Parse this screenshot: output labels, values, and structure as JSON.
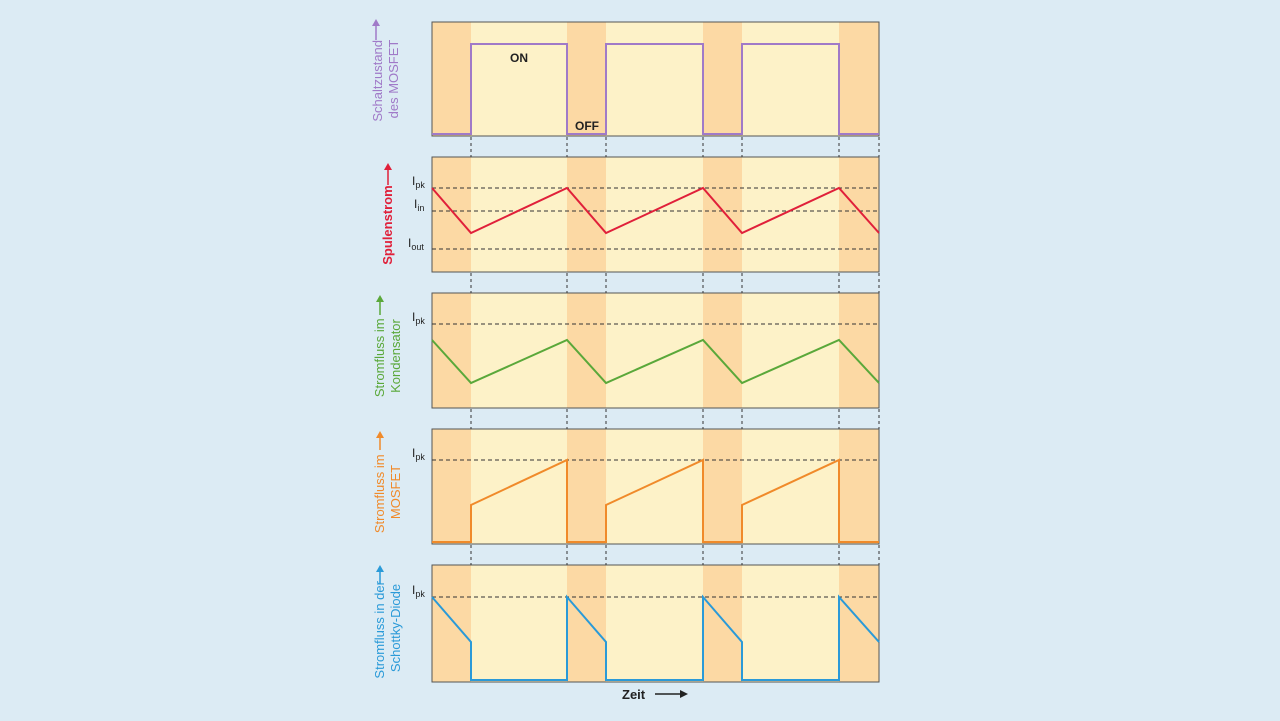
{
  "colors": {
    "background": "#dcebf4",
    "panel_on": "#fdf2c8",
    "panel_off": "#fcd9a4",
    "frame": "#555555"
  },
  "x_axis": {
    "label": "Zeit"
  },
  "states": {
    "on": "ON",
    "off": "OFF"
  },
  "level_labels": {
    "ipk": {
      "main": "I",
      "sub": "pk"
    },
    "iin": {
      "main": "I",
      "sub": "in"
    },
    "iout": {
      "main": "I",
      "sub": "out"
    }
  },
  "panels": [
    {
      "id": "mosfet-state",
      "label_lines": [
        "Schaltzustand",
        "des MOSFET"
      ],
      "color": "#a07ac8"
    },
    {
      "id": "coil-current",
      "label_lines": [
        "Spulenstrom"
      ],
      "color": "#e0203a"
    },
    {
      "id": "capacitor-current",
      "label_lines": [
        "Stromfluss im",
        "Kondensator"
      ],
      "color": "#5aa83a"
    },
    {
      "id": "mosfet-current",
      "label_lines": [
        "Stromfluss im",
        "MOSFET"
      ],
      "color": "#f08a2a"
    },
    {
      "id": "diode-current",
      "label_lines": [
        "Stromfluss in der",
        "Schottky-Diode"
      ],
      "color": "#2a9ad8"
    }
  ]
}
